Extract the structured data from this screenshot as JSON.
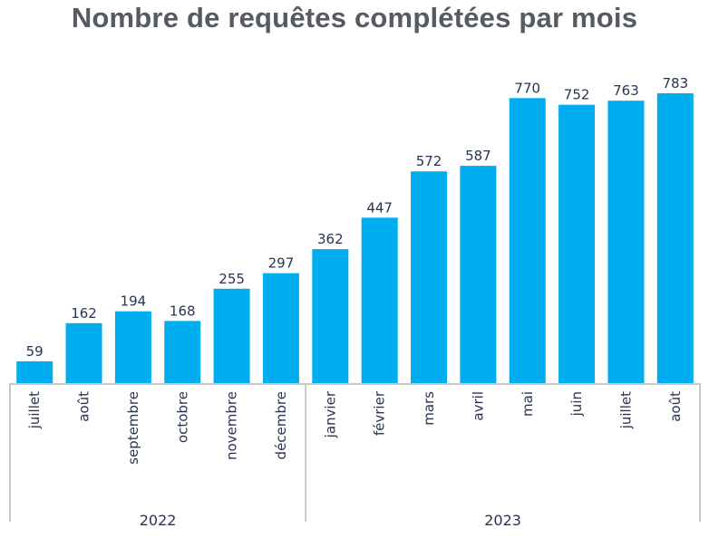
{
  "chart_data": {
    "type": "bar",
    "title": "Nombre de requêtes complétées par mois",
    "categories": [
      "juillet",
      "août",
      "septembre",
      "octobre",
      "novembre",
      "décembre",
      "janvier",
      "février",
      "mars",
      "avril",
      "mai",
      "juin",
      "juillet",
      "août"
    ],
    "groups": [
      {
        "label": "2022",
        "count": 6
      },
      {
        "label": "2023",
        "count": 8
      }
    ],
    "values": [
      59,
      162,
      194,
      168,
      255,
      297,
      362,
      447,
      572,
      587,
      770,
      752,
      763,
      783
    ],
    "data_labels": true,
    "xlabel": "",
    "ylabel": "",
    "ylim": [
      0,
      783
    ],
    "grid": false,
    "bar_color": "#00aeef"
  }
}
